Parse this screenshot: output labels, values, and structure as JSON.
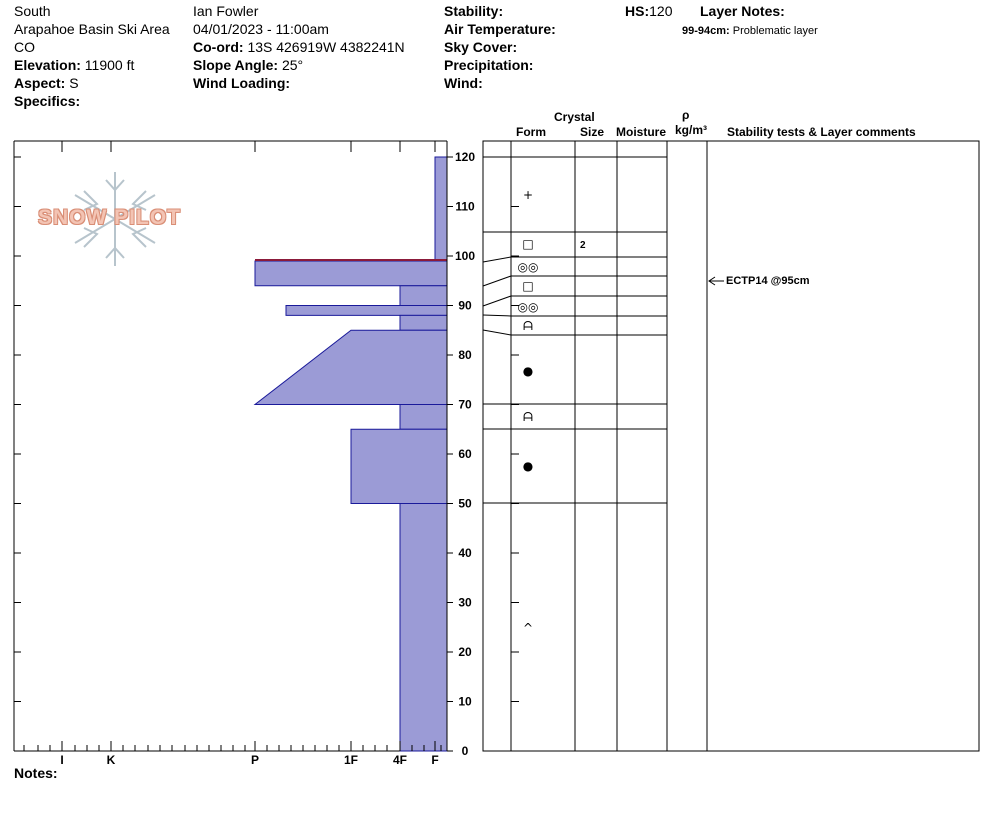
{
  "header": {
    "aspect_region": "South",
    "location": "Arapahoe Basin Ski Area",
    "state": "CO",
    "elevation_label": "Elevation:",
    "elevation_value": "11900 ft",
    "aspect_label": "Aspect:",
    "aspect_value": "S",
    "specifics_label": "Specifics:",
    "observer": "Ian Fowler",
    "datetime": "04/01/2023 - 11:00am",
    "coord_label": "Co-ord:",
    "coord_value": "13S 426919W 4382241N",
    "slope_label": "Slope Angle:",
    "slope_value": "25°",
    "wind_loading_label": "Wind Loading:",
    "stability_label": "Stability:",
    "air_temp_label": "Air Temperature:",
    "sky_cover_label": "Sky Cover:",
    "precip_label": "Precipitation:",
    "wind_label": "Wind:",
    "hs_label": "HS:",
    "hs_value": "120",
    "layer_notes_label": "Layer Notes:",
    "layer_note_range": "99-94cm:",
    "layer_note_text": "Problematic layer"
  },
  "logo": {
    "text": "SNOW PILOT",
    "color": "#f0c0b0"
  },
  "columns": {
    "crystal": "Crystal",
    "form": "Form",
    "size": "Size",
    "moisture": "Moisture",
    "rho": "ρ",
    "density_unit": "kg/m³",
    "stability_comments": "Stability tests & Layer comments"
  },
  "notes_label": "Notes:",
  "stability_test": {
    "text": "ECTP14 @95cm",
    "depth_cm": 95
  },
  "chart_data": {
    "type": "snow-profile",
    "depth_axis": {
      "min": 0,
      "max": 120,
      "ticks": [
        0,
        10,
        20,
        30,
        40,
        50,
        60,
        70,
        80,
        90,
        100,
        110,
        120
      ]
    },
    "hardness_axis": {
      "labels": [
        "I",
        "K",
        "P",
        "1F",
        "4F",
        "F"
      ]
    },
    "hardness_profile": [
      {
        "top": 120,
        "bottom": 105,
        "hardness": "F"
      },
      {
        "top": 105,
        "bottom": 99,
        "hardness": "F"
      },
      {
        "top": 99,
        "bottom": 94,
        "hardness": "P"
      },
      {
        "top": 94,
        "bottom": 90,
        "hardness": "4F"
      },
      {
        "top": 90,
        "bottom": 88,
        "hardness": "P-1F"
      },
      {
        "top": 88,
        "bottom": 85,
        "hardness": "4F"
      },
      {
        "top": 85,
        "bottom": 70,
        "hardness": "1F to P"
      },
      {
        "top": 70,
        "bottom": 65,
        "hardness": "4F"
      },
      {
        "top": 65,
        "bottom": 50,
        "hardness": "1F"
      },
      {
        "top": 50,
        "bottom": 0,
        "hardness": "4F"
      }
    ],
    "layer_boundaries_cm": [
      120,
      105,
      99,
      96,
      92,
      88,
      84,
      70,
      65,
      50
    ],
    "grain_forms": [
      {
        "depth": 112,
        "symbol": "+"
      },
      {
        "depth": 102,
        "symbol": "□",
        "size": "2"
      },
      {
        "depth": 98,
        "symbol": "◎◎"
      },
      {
        "depth": 94,
        "symbol": "□"
      },
      {
        "depth": 90,
        "symbol": "◎◎"
      },
      {
        "depth": 86,
        "symbol": "ᗩ"
      },
      {
        "depth": 77,
        "symbol": "●"
      },
      {
        "depth": 68,
        "symbol": "ᗩ"
      },
      {
        "depth": 58,
        "symbol": "●"
      },
      {
        "depth": 25,
        "symbol": "^"
      }
    ]
  }
}
